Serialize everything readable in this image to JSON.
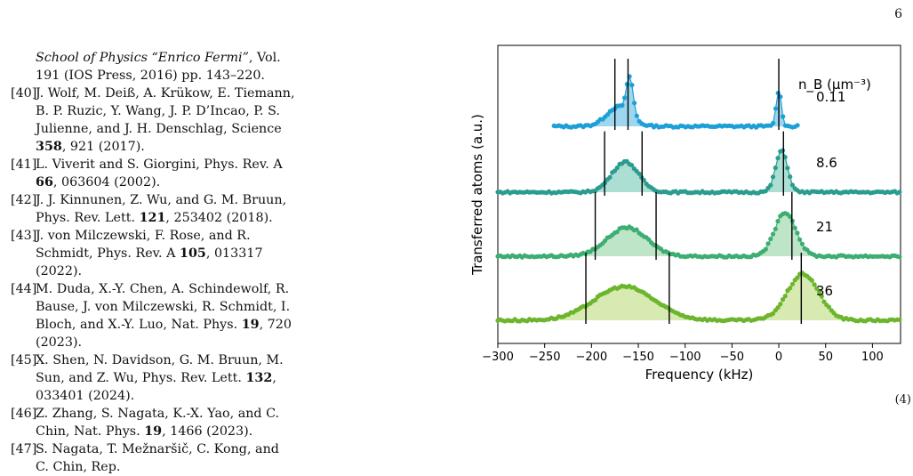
{
  "page_number": "6",
  "references": [
    {
      "num": "",
      "segments": [
        {
          "t": "School of Physics “Enrico Fermi”",
          "i": true
        },
        {
          "t": ", Vol. 191 (IOS Press, 2016) pp. 143–220."
        }
      ]
    },
    {
      "num": "[40]",
      "segments": [
        {
          "t": "J. Wolf, M. Deiß, A. Krükow, E. Tiemann, B. P. Ruzic, Y. Wang, J. P. D’Incao, P. S. Julienne,  and J. H. Denschlag, Science "
        },
        {
          "t": "358",
          "b": true
        },
        {
          "t": ", 921 (2017)."
        }
      ]
    },
    {
      "num": "[41]",
      "segments": [
        {
          "t": "L. Viverit and S. Giorgini, Phys. Rev. A "
        },
        {
          "t": "66",
          "b": true
        },
        {
          "t": ", 063604 (2002)."
        }
      ]
    },
    {
      "num": "[42]",
      "segments": [
        {
          "t": "J. J. Kinnunen, Z. Wu,  and G. M. Bruun, Phys. Rev. Lett. "
        },
        {
          "t": "121",
          "b": true
        },
        {
          "t": ", 253402 (2018)."
        }
      ]
    },
    {
      "num": "[43]",
      "segments": [
        {
          "t": "J. von Milczewski, F. Rose,  and R. Schmidt, Phys. Rev. A "
        },
        {
          "t": "105",
          "b": true
        },
        {
          "t": ", 013317 (2022)."
        }
      ]
    },
    {
      "num": "[44]",
      "segments": [
        {
          "t": "M. Duda, X.-Y. Chen, A. Schindewolf, R. Bause, J. von Milczewski, R. Schmidt, I. Bloch,  and X.-Y. Luo, Nat. Phys. "
        },
        {
          "t": "19",
          "b": true
        },
        {
          "t": ", 720 (2023)."
        }
      ]
    },
    {
      "num": "[45]",
      "segments": [
        {
          "t": "X. Shen, N. Davidson, G. M. Bruun, M. Sun,  and Z. Wu, Phys. Rev. Lett. "
        },
        {
          "t": "132",
          "b": true
        },
        {
          "t": ", 033401 (2024)."
        }
      ]
    },
    {
      "num": "[46]",
      "segments": [
        {
          "t": "Z. Zhang, S. Nagata, K.-X. Yao,  and C. Chin, Nat. Phys. "
        },
        {
          "t": "19",
          "b": true
        },
        {
          "t": ", 1466 (2023)."
        }
      ]
    },
    {
      "num": "[47]",
      "segments": [
        {
          "t": "S. Nagata, T. Mežnaršič, C. Kong,  and C. Chin, Rep."
        }
      ]
    }
  ],
  "figure": {
    "chart_data": {
      "type": "line",
      "xlabel": "Frequency (kHz)",
      "ylabel": "Transferred atoms (a.u.)",
      "xlim": [
        -300,
        130
      ],
      "xticks": [
        -300,
        -250,
        -200,
        -150,
        -100,
        -50,
        0,
        50,
        100
      ],
      "legend_title": "n_B (μm⁻³)",
      "grid": false,
      "series": [
        {
          "name": "0.11",
          "color": "#1e9fd6",
          "fill": "#8ccfea",
          "x_range": [
            -240,
            22
          ],
          "markers": [
            -175,
            -161,
            0
          ],
          "peaks": [
            {
              "center": -171,
              "width": 18,
              "height": 0.55
            },
            {
              "center": -159,
              "width": 5,
              "height": 1.05
            },
            {
              "center": 0,
              "width": 4,
              "height": 1.0
            }
          ]
        },
        {
          "name": "8.6",
          "color": "#2a9d8f",
          "fill": "#9fd8cb",
          "x_range": [
            -300,
            130
          ],
          "markers": [
            -186,
            -146,
            5
          ],
          "peaks": [
            {
              "center": -164,
              "width": 20,
              "height": 0.95
            },
            {
              "center": 3,
              "width": 9,
              "height": 1.3
            }
          ]
        },
        {
          "name": "21",
          "color": "#3dae72",
          "fill": "#b4e0c0",
          "x_range": [
            -300,
            130
          ],
          "markers": [
            -196,
            -131,
            14
          ],
          "peaks": [
            {
              "center": -162,
              "width": 30,
              "height": 0.85
            },
            {
              "center": 7,
              "width": 16,
              "height": 1.3
            }
          ]
        },
        {
          "name": "36",
          "color": "#6cb52c",
          "fill": "#cfe6a4",
          "x_range": [
            -300,
            130
          ],
          "markers": [
            -206,
            -117,
            24
          ],
          "peaks": [
            {
              "center": -165,
              "width": 45,
              "height": 0.95
            },
            {
              "center": 26,
              "width": 24,
              "height": 1.3
            }
          ]
        }
      ]
    }
  },
  "trailing_text": "(4)"
}
